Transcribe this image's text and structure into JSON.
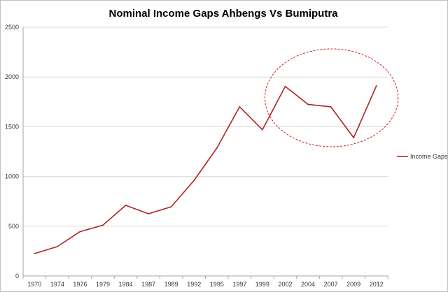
{
  "chart_data": {
    "type": "line",
    "title": "Nominal Income Gaps Ahbengs Vs Bumiputra",
    "xlabel": "",
    "ylabel": "",
    "categories": [
      "1970",
      "1974",
      "1976",
      "1979",
      "1984",
      "1987",
      "1989",
      "1992",
      "1995",
      "1997",
      "1999",
      "2002",
      "2004",
      "2007",
      "2009",
      "2012"
    ],
    "series": [
      {
        "name": "Income Gaps",
        "color": "#b22222",
        "values": [
          225,
          295,
          445,
          510,
          710,
          625,
          695,
          960,
          1285,
          1700,
          1470,
          1905,
          1725,
          1700,
          1390,
          1910
        ]
      }
    ],
    "ylim": [
      0,
      2500
    ],
    "yticks": [
      0,
      500,
      1000,
      1500,
      2000,
      2500
    ],
    "grid": true,
    "legend_position": "right",
    "annotation": {
      "shape": "dashed-ellipse",
      "color": "#cc2222",
      "highlights": [
        "2002",
        "2012"
      ]
    }
  }
}
